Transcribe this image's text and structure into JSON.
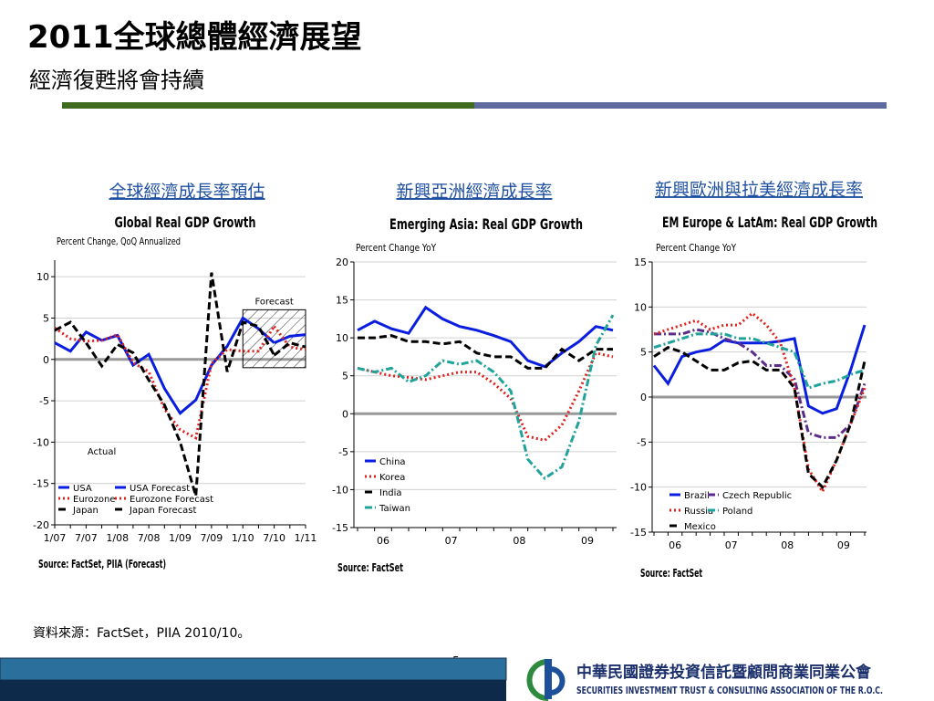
{
  "slide": {
    "title": "2011全球總體經濟展望",
    "subtitle": "經濟復甦將會持續",
    "source": "資料來源：FactSet，PIIA 2010/10。",
    "page_number": "5",
    "logo_cn": "中華民國證券投資信託暨顧問商業同業公會",
    "logo_en": "SECURITIES INVESTMENT TRUST & CONSULTING ASSOCIATION OF THE R.O.C."
  },
  "chart_data": [
    {
      "type": "line",
      "heading": "全球經濟成長率預估",
      "title": "Global Real GDP Growth",
      "y_label": "Percent Change, QoQ Annualized",
      "source": "Source: FactSet, PIIA (Forecast)",
      "annotations": [
        "Forecast",
        "Actual"
      ],
      "categories": [
        "1/07",
        null,
        "7/07",
        null,
        "1/08",
        null,
        "7/08",
        null,
        "1/09",
        null,
        "7/09",
        null,
        "1/10",
        null,
        "7/10",
        null,
        "1/11"
      ],
      "ylim": [
        -20,
        12
      ],
      "yticks": [
        -20,
        -15,
        -10,
        -5,
        0,
        5,
        10
      ],
      "series": [
        {
          "name": "USA",
          "color": "#0a1ee0",
          "style": "solid",
          "values": [
            2.0,
            1.0,
            3.3,
            2.3,
            2.9,
            -0.7,
            0.6,
            -3.5,
            -6.5,
            -4.9,
            -0.7,
            1.6,
            5.0,
            3.7,
            2.0,
            null,
            null
          ]
        },
        {
          "name": "USA Forecast",
          "color": "#0a1ee0",
          "style": "solid",
          "values": [
            null,
            null,
            null,
            null,
            null,
            null,
            null,
            null,
            null,
            null,
            null,
            null,
            null,
            null,
            2.0,
            2.8,
            3.0
          ]
        },
        {
          "name": "Eurozone",
          "color": "#e0201b",
          "style": "dotted",
          "values": [
            3.8,
            2.5,
            2.2,
            2.3,
            3.0,
            -0.4,
            -1.5,
            -6.0,
            -8.5,
            -9.5,
            -0.5,
            1.2,
            1.0,
            1.0,
            4.0,
            null,
            null
          ]
        },
        {
          "name": "Eurozone Forecast",
          "color": "#e0201b",
          "style": "dotted",
          "values": [
            null,
            null,
            null,
            null,
            null,
            null,
            null,
            null,
            null,
            null,
            null,
            null,
            null,
            null,
            4.0,
            1.5,
            1.2
          ]
        },
        {
          "name": "Japan",
          "color": "#000000",
          "style": "dashed",
          "values": [
            3.5,
            4.5,
            2.0,
            -0.8,
            1.8,
            0.8,
            -2.5,
            -5.5,
            -10.0,
            -16.5,
            10.5,
            -1.5,
            4.5,
            4.0,
            0.5,
            null,
            null
          ]
        },
        {
          "name": "Japan Forecast",
          "color": "#000000",
          "style": "dashed",
          "values": [
            null,
            null,
            null,
            null,
            null,
            null,
            null,
            null,
            null,
            null,
            null,
            null,
            null,
            null,
            0.5,
            2.0,
            1.5
          ]
        }
      ]
    },
    {
      "type": "line",
      "heading": "新興亞洲經濟成長率",
      "title": "Emerging Asia: Real GDP Growth",
      "y_label": "Percent Change YoY",
      "source": "Source: FactSet",
      "categories": [
        "06",
        null,
        null,
        null,
        "07",
        null,
        null,
        null,
        "08",
        null,
        null,
        null,
        "09",
        null,
        null,
        null
      ],
      "ylim": [
        -15,
        20
      ],
      "yticks": [
        -15,
        -10,
        -5,
        0,
        5,
        10,
        15,
        20
      ],
      "series": [
        {
          "name": "China",
          "color": "#0a1ee0",
          "style": "solid",
          "values": [
            11.0,
            12.2,
            11.2,
            10.6,
            14.0,
            12.5,
            11.5,
            11.0,
            10.3,
            9.5,
            7.0,
            6.2,
            8.0,
            9.5,
            11.5,
            11.0
          ]
        },
        {
          "name": "Korea",
          "color": "#e0201b",
          "style": "dotted",
          "values": [
            6.0,
            5.5,
            5.0,
            4.8,
            4.5,
            5.0,
            5.5,
            5.5,
            4.0,
            2.0,
            -3.0,
            -3.5,
            -1.5,
            3.0,
            8.0,
            7.5
          ]
        },
        {
          "name": "India",
          "color": "#000000",
          "style": "dashed",
          "values": [
            10.0,
            10.0,
            10.3,
            9.5,
            9.5,
            9.2,
            9.5,
            8.0,
            7.5,
            7.5,
            6.0,
            6.0,
            8.5,
            7.0,
            8.5,
            8.5
          ]
        },
        {
          "name": "Taiwan",
          "color": "#1fa39a",
          "style": "dashdot",
          "values": [
            6.0,
            5.5,
            6.0,
            4.2,
            5.0,
            7.0,
            6.5,
            7.0,
            5.5,
            3.0,
            -6.0,
            -8.5,
            -7.0,
            -1.0,
            9.0,
            13.0
          ]
        }
      ]
    },
    {
      "type": "line",
      "heading": "新興歐洲與拉美經濟成長率",
      "title": "EM Europe & LatAm: Real GDP Growth",
      "y_label": "Percent Change YoY",
      "source": "Source: FactSet",
      "categories": [
        "06",
        null,
        null,
        null,
        "07",
        null,
        null,
        null,
        "08",
        null,
        null,
        null,
        "09",
        null,
        null,
        null
      ],
      "ylim": [
        -15,
        15
      ],
      "yticks": [
        -15,
        -10,
        -5,
        0,
        5,
        10,
        15
      ],
      "series": [
        {
          "name": "Brazil",
          "color": "#0a1ee0",
          "style": "solid",
          "values": [
            3.5,
            1.5,
            4.5,
            5.0,
            5.3,
            6.3,
            6.0,
            6.0,
            6.0,
            6.2,
            6.5,
            -1.0,
            -1.8,
            -1.3,
            3.0,
            8.0
          ]
        },
        {
          "name": "Czech Republic",
          "color": "#5b2c8c",
          "style": "dashdot",
          "values": [
            7.0,
            7.0,
            7.0,
            7.5,
            7.2,
            6.5,
            6.0,
            5.0,
            3.5,
            3.5,
            2.0,
            -4.0,
            -4.5,
            -4.5,
            -3.0,
            1.5
          ]
        },
        {
          "name": "Russia",
          "color": "#e0201b",
          "style": "dotted",
          "values": [
            7.0,
            7.5,
            8.0,
            8.5,
            7.5,
            8.0,
            8.0,
            9.3,
            8.0,
            6.0,
            1.0,
            -8.0,
            -10.5,
            -7.0,
            -3.0,
            1.0
          ]
        },
        {
          "name": "Poland",
          "color": "#1fa39a",
          "style": "dashdot",
          "values": [
            5.5,
            6.0,
            6.5,
            7.0,
            7.0,
            7.0,
            6.5,
            6.5,
            6.0,
            5.5,
            5.0,
            1.0,
            1.5,
            1.8,
            2.5,
            3.0
          ]
        },
        {
          "name": "Mexico",
          "color": "#000000",
          "style": "dashed",
          "values": [
            4.5,
            5.5,
            5.0,
            4.0,
            3.0,
            3.0,
            3.8,
            4.0,
            3.0,
            3.0,
            1.0,
            -8.5,
            -10.0,
            -7.0,
            -3.0,
            4.0
          ]
        }
      ]
    }
  ]
}
